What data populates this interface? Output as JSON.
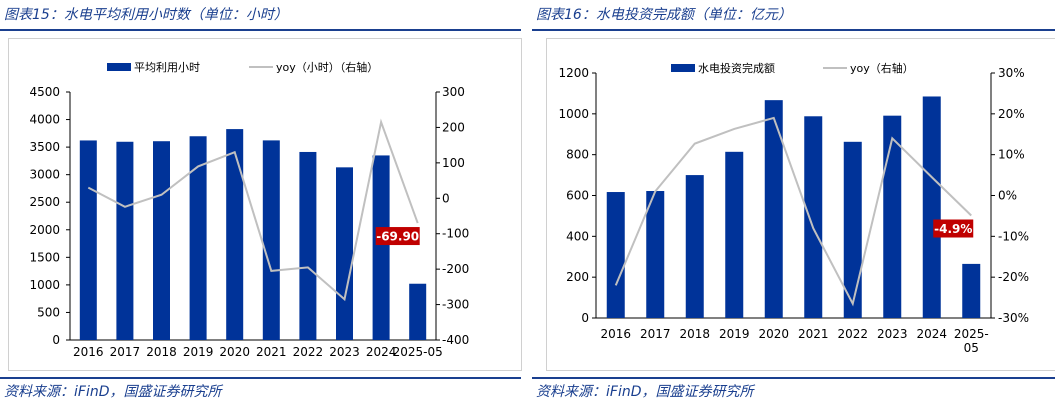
{
  "colors": {
    "bar": "#003399",
    "line": "#c0c0c0",
    "label_bg": "#c00000",
    "title": "#1a3f8f"
  },
  "left_panel": {
    "title": "图表15：水电平均利用小时数（单位：小时）",
    "source": "资料来源：iFinD，国盛证券研究所"
  },
  "right_panel": {
    "title": "图表16：水电投资完成额（单位：亿元）",
    "source": "资料来源：iFinD，国盛证券研究所"
  },
  "chart_data": [
    {
      "type": "bar",
      "categories": [
        "2016",
        "2017",
        "2018",
        "2019",
        "2020",
        "2021",
        "2022",
        "2023",
        "2024",
        "2025-05"
      ],
      "series": [
        {
          "name": "平均利用小时",
          "kind": "bar",
          "axis": "left",
          "values": [
            3621,
            3597,
            3607,
            3697,
            3827,
            3622,
            3412,
            3133,
            3349,
            1021
          ]
        },
        {
          "name": "yoy（小时）（右轴）",
          "kind": "line",
          "axis": "right",
          "values": [
            30,
            -24,
            10,
            90,
            130,
            -205,
            -195,
            -285,
            215,
            -69.9
          ]
        }
      ],
      "ylim": [
        0,
        4500
      ],
      "y2lim": [
        -400,
        300
      ],
      "yticks": [
        "0",
        "500",
        "1000",
        "1500",
        "2000",
        "2500",
        "3000",
        "3500",
        "4000",
        "4500"
      ],
      "y2ticks": [
        "-400",
        "-300",
        "-200",
        "-100",
        "0",
        "100",
        "200",
        "300"
      ],
      "annotation": {
        "text": "-69.90",
        "series": 1,
        "index": 9
      },
      "legend": "top"
    },
    {
      "type": "bar",
      "categories": [
        "2016",
        "2017",
        "2018",
        "2019",
        "2020",
        "2021",
        "2022",
        "2023",
        "2024",
        "2025-05"
      ],
      "series": [
        {
          "name": "水电投资完成额",
          "kind": "bar",
          "axis": "left",
          "values": [
            617,
            622,
            700,
            814,
            1067,
            988,
            863,
            991,
            1085,
            265
          ]
        },
        {
          "name": "yoy（右轴）",
          "kind": "line",
          "axis": "right",
          "values": [
            -22,
            1,
            12.7,
            16.3,
            19,
            -8,
            -26.5,
            14,
            4.5,
            -4.9
          ]
        }
      ],
      "ylim": [
        0,
        1200
      ],
      "y2lim": [
        -30,
        30
      ],
      "yticks": [
        "0",
        "200",
        "400",
        "600",
        "800",
        "1000",
        "1200"
      ],
      "y2ticks": [
        "-30%",
        "-20%",
        "-10%",
        "0%",
        "10%",
        "20%",
        "30%"
      ],
      "annotation": {
        "text": "-4.9%",
        "series": 1,
        "index": 9
      },
      "legend": "top"
    }
  ]
}
